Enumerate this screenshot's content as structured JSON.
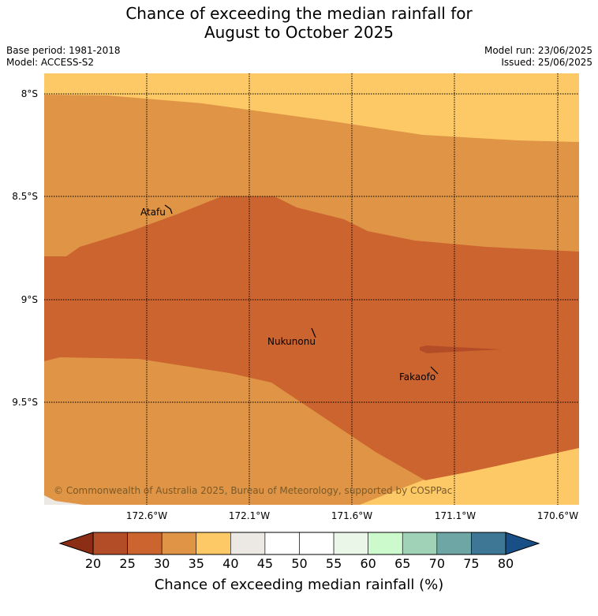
{
  "title": {
    "line1": "Chance of exceeding the median rainfall for",
    "line2": "August to October 2025"
  },
  "meta": {
    "base_period": "Base period: 1981-2018",
    "model": "Model: ACCESS-S2",
    "model_run": "Model run: 23/06/2025",
    "issued": "Issued: 25/06/2025"
  },
  "map": {
    "lat_labels": [
      "8°S",
      "8.5°S",
      "9°S",
      "9.5°S"
    ],
    "lon_labels": [
      "172.6°W",
      "172.1°W",
      "171.6°W",
      "171.1°W",
      "170.6°W"
    ],
    "places": [
      "Atafu",
      "Nukunonu",
      "Fakaofo"
    ],
    "copyright": "© Commonwealth of Australia 2025, Bureau of Meteorology, supported by COSPPac"
  },
  "colorbar": {
    "ticks": [
      "20",
      "25",
      "30",
      "35",
      "40",
      "45",
      "50",
      "55",
      "60",
      "65",
      "70",
      "75",
      "80"
    ],
    "label": "Chance of exceeding median rainfall (%)",
    "colors": {
      "under": "#8c2d16",
      "bins": [
        "#b34d27",
        "#cc6430",
        "#e09445",
        "#fdc966",
        "#ece9e4",
        "#ffffff",
        "#ffffff",
        "#eaf6e8",
        "#ccfacc",
        "#9fd2b6",
        "#6ea6a6",
        "#3e7695"
      ],
      "over": "#184f86"
    }
  },
  "legend_colors": {
    "c20_25": "#b34d27",
    "c25_30": "#cc6430",
    "c30_35": "#e09445",
    "c35_40": "#fdc966",
    "c40_45": "#ece9e4"
  }
}
